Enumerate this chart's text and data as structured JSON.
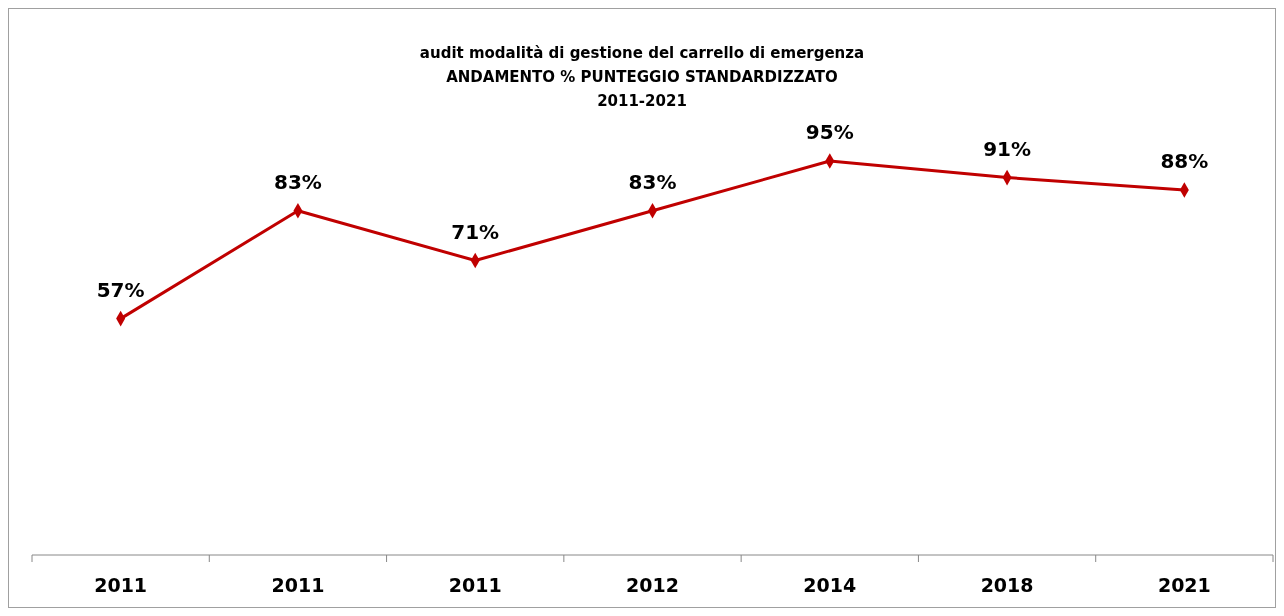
{
  "chart_data": {
    "type": "line",
    "title": "audit modalità di gestione del carrello di emergenza\nANDAMENTO % PUNTEGGIO STANDARDIZZATO\n2011-2021",
    "categories": [
      "2011",
      "2011",
      "2011",
      "2012",
      "2014",
      "2018",
      "2021"
    ],
    "series": [
      {
        "color": "#c00000",
        "values": [
          57,
          83,
          71,
          83,
          95,
          91,
          88
        ],
        "value_labels": [
          "57%",
          "83%",
          "71%",
          "83%",
          "95%",
          "91%",
          "88%"
        ]
      }
    ],
    "marker": "diamond",
    "line_style": "solid"
  }
}
